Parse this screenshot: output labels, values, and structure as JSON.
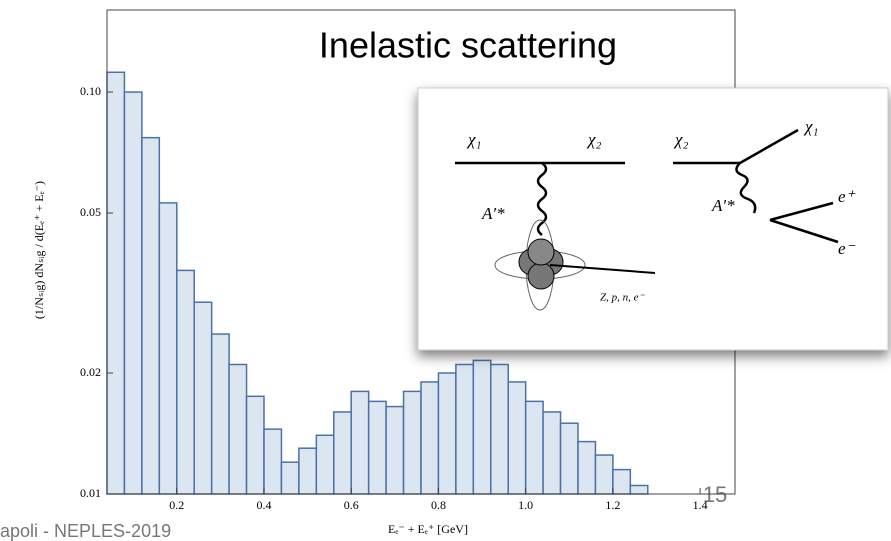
{
  "chart_data": {
    "type": "histogram",
    "title": "Inelastic scattering",
    "xlabel": "Eₑ⁻ + Eₑ⁺ [GeV]",
    "ylabel": "(1/Nₛᵢg) dNₛᵢg / d(Eₑ⁺ + Eₑ⁻)",
    "bins": [
      0.04,
      0.08,
      0.12,
      0.16,
      0.2,
      0.24,
      0.28,
      0.32,
      0.36,
      0.4,
      0.44,
      0.48,
      0.52,
      0.56,
      0.6,
      0.64,
      0.68,
      0.72,
      0.76,
      0.8,
      0.84,
      0.88,
      0.92,
      0.96,
      1,
      1.04,
      1.08,
      1.12,
      1.16,
      1.2,
      1.24,
      1.28
    ],
    "values": [
      0.112,
      0.1,
      0.077,
      0.053,
      0.036,
      0.03,
      0.025,
      0.021,
      0.0175,
      0.0145,
      0.012,
      0.013,
      0.014,
      0.016,
      0.018,
      0.017,
      0.0165,
      0.018,
      0.019,
      0.02,
      0.021,
      0.0215,
      0.021,
      0.019,
      0.017,
      0.016,
      0.015,
      0.0135,
      0.0125,
      0.0115,
      0.0105
    ],
    "color": "#dce6f1",
    "edge_color": "#4a72a8",
    "xlim": [
      0.04,
      1.48
    ],
    "ylim": [
      0.01,
      0.16
    ],
    "log_y": true,
    "xticks": [
      0.2,
      0.4,
      0.6,
      0.8,
      {
        "value": 1,
        "label": "1.0"
      },
      1.2,
      1.4
    ],
    "yticks": [
      0.01,
      0.02,
      0.05,
      {
        "value": 0.1,
        "label": "0.10"
      }
    ]
  },
  "diagram": {
    "labels": [
      "χ₁",
      "χ₂",
      "A′*",
      "Z, p, n, e⁻",
      "χ₂",
      "χ₁",
      "A′*",
      "e⁺",
      "e⁻"
    ]
  },
  "footer": {
    "left": "apoli - NEPLES-2019",
    "page": "15"
  }
}
